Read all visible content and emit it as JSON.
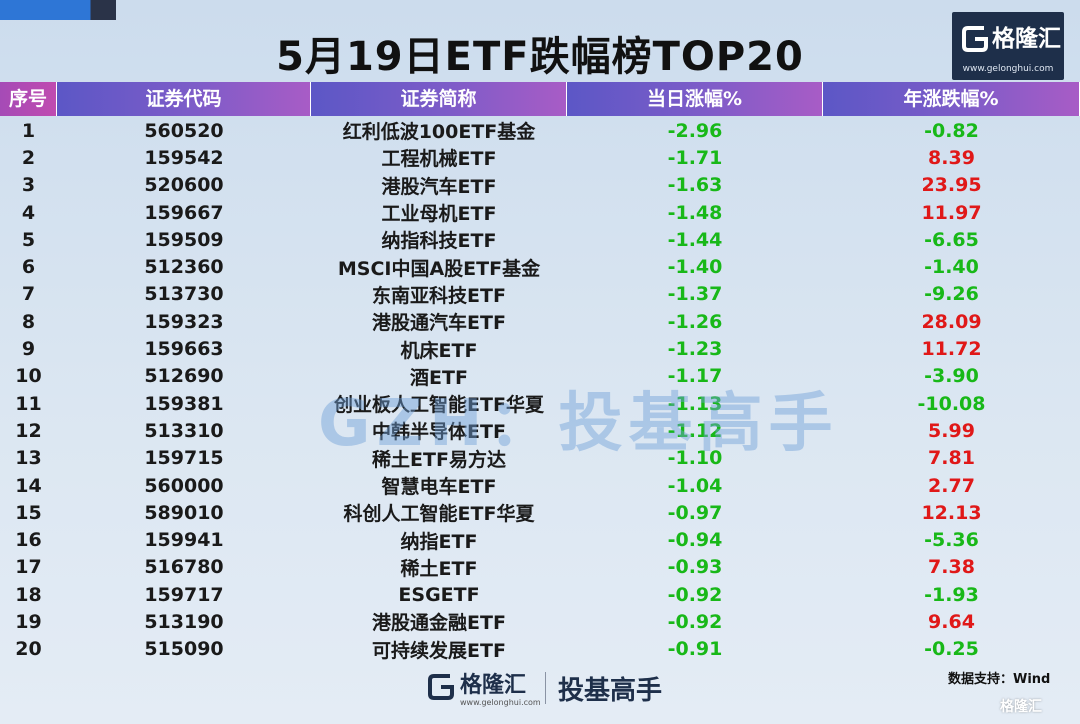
{
  "title": "5月19日ETF跌幅榜TOP20",
  "logo": {
    "name": "格隆汇",
    "url": "www.gelonghui.com"
  },
  "table": {
    "headers": [
      "序号",
      "证券代码",
      "证券简称",
      "当日涨幅%",
      "年涨跌幅%"
    ],
    "rows": [
      {
        "rank": "1",
        "code": "560520",
        "name": "红利低波100ETF基金",
        "day": "-2.96",
        "year": "-0.82"
      },
      {
        "rank": "2",
        "code": "159542",
        "name": "工程机械ETF",
        "day": "-1.71",
        "year": "8.39"
      },
      {
        "rank": "3",
        "code": "520600",
        "name": "港股汽车ETF",
        "day": "-1.63",
        "year": "23.95"
      },
      {
        "rank": "4",
        "code": "159667",
        "name": "工业母机ETF",
        "day": "-1.48",
        "year": "11.97"
      },
      {
        "rank": "5",
        "code": "159509",
        "name": "纳指科技ETF",
        "day": "-1.44",
        "year": "-6.65"
      },
      {
        "rank": "6",
        "code": "512360",
        "name": "MSCI中国A股ETF基金",
        "day": "-1.40",
        "year": "-1.40"
      },
      {
        "rank": "7",
        "code": "513730",
        "name": "东南亚科技ETF",
        "day": "-1.37",
        "year": "-9.26"
      },
      {
        "rank": "8",
        "code": "159323",
        "name": "港股通汽车ETF",
        "day": "-1.26",
        "year": "28.09"
      },
      {
        "rank": "9",
        "code": "159663",
        "name": "机床ETF",
        "day": "-1.23",
        "year": "11.72"
      },
      {
        "rank": "10",
        "code": "512690",
        "name": "酒ETF",
        "day": "-1.17",
        "year": "-3.90"
      },
      {
        "rank": "11",
        "code": "159381",
        "name": "创业板人工智能ETF华夏",
        "day": "-1.13",
        "year": "-10.08"
      },
      {
        "rank": "12",
        "code": "513310",
        "name": "中韩半导体ETF",
        "day": "-1.12",
        "year": "5.99"
      },
      {
        "rank": "13",
        "code": "159715",
        "name": "稀土ETF易方达",
        "day": "-1.10",
        "year": "7.81"
      },
      {
        "rank": "14",
        "code": "560000",
        "name": "智慧电车ETF",
        "day": "-1.04",
        "year": "2.77"
      },
      {
        "rank": "15",
        "code": "589010",
        "name": "科创人工智能ETF华夏",
        "day": "-0.97",
        "year": "12.13"
      },
      {
        "rank": "16",
        "code": "159941",
        "name": "纳指ETF",
        "day": "-0.94",
        "year": "-5.36"
      },
      {
        "rank": "17",
        "code": "516780",
        "name": "稀土ETF",
        "day": "-0.93",
        "year": "7.38"
      },
      {
        "rank": "18",
        "code": "159717",
        "name": "ESGETF",
        "day": "-0.92",
        "year": "-1.93"
      },
      {
        "rank": "19",
        "code": "513190",
        "name": "港股通金融ETF",
        "day": "-0.92",
        "year": "9.64"
      },
      {
        "rank": "20",
        "code": "515090",
        "name": "可持续发展ETF",
        "day": "-0.91",
        "year": "-0.25"
      }
    ]
  },
  "watermark": "GZH：投基高手",
  "footer": {
    "logo_name": "格隆汇",
    "logo_url": "www.gelonghui.com",
    "slogan": "投基高手",
    "source": "数据支持：Wind"
  },
  "corner_watermark": "格隆汇",
  "colors": {
    "negative": "#18b818",
    "positive": "#e01818",
    "brand_dark": "#1e2f4a"
  }
}
